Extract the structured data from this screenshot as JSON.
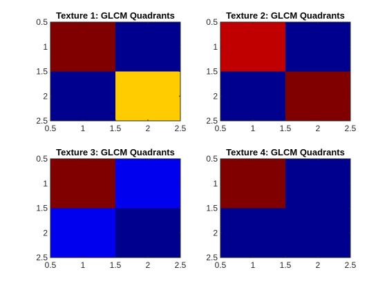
{
  "chart_data": [
    {
      "type": "heatmap",
      "title": "Texture 1: GLCM Quadrants",
      "xlim": [
        0.5,
        2.5
      ],
      "ylim": [
        0.5,
        2.5
      ],
      "y_reversed": true,
      "xticks": [
        "0.5",
        "1",
        "1.5",
        "2",
        "2.5"
      ],
      "yticks": [
        "0.5",
        "1",
        "1.5",
        "2",
        "2.5"
      ],
      "cells": [
        [
          {
            "color": "#800000"
          },
          {
            "color": "#00008f"
          }
        ],
        [
          {
            "color": "#00008f"
          },
          {
            "color": "#ffcc00"
          }
        ]
      ]
    },
    {
      "type": "heatmap",
      "title": "Texture 2: GLCM Quadrants",
      "xlim": [
        0.5,
        2.5
      ],
      "ylim": [
        0.5,
        2.5
      ],
      "y_reversed": true,
      "xticks": [
        "0.5",
        "1",
        "1.5",
        "2",
        "2.5"
      ],
      "yticks": [
        "0.5",
        "1",
        "1.5",
        "2",
        "2.5"
      ],
      "cells": [
        [
          {
            "color": "#c00000"
          },
          {
            "color": "#00008f"
          }
        ],
        [
          {
            "color": "#00008f"
          },
          {
            "color": "#800000"
          }
        ]
      ]
    },
    {
      "type": "heatmap",
      "title": "Texture 3: GLCM Quadrants",
      "xlim": [
        0.5,
        2.5
      ],
      "ylim": [
        0.5,
        2.5
      ],
      "y_reversed": true,
      "xticks": [
        "0.5",
        "1",
        "1.5",
        "2",
        "2.5"
      ],
      "yticks": [
        "0.5",
        "1",
        "1.5",
        "2",
        "2.5"
      ],
      "cells": [
        [
          {
            "color": "#800000"
          },
          {
            "color": "#0000ef"
          }
        ],
        [
          {
            "color": "#0000ef"
          },
          {
            "color": "#00008f"
          }
        ]
      ]
    },
    {
      "type": "heatmap",
      "title": "Texture 4: GLCM Quadrants",
      "xlim": [
        0.5,
        2.5
      ],
      "ylim": [
        0.5,
        2.5
      ],
      "y_reversed": true,
      "xticks": [
        "0.5",
        "1",
        "1.5",
        "2",
        "2.5"
      ],
      "yticks": [
        "0.5",
        "1",
        "1.5",
        "2",
        "2.5"
      ],
      "cells": [
        [
          {
            "color": "#800000"
          },
          {
            "color": "#00008f"
          }
        ],
        [
          {
            "color": "#00008f"
          },
          {
            "color": "#00008f"
          }
        ]
      ]
    }
  ]
}
